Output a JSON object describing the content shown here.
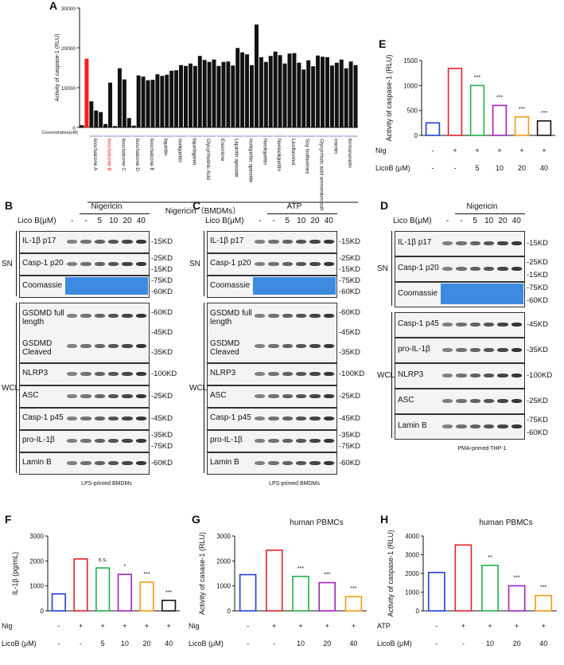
{
  "chart_data": [
    {
      "type": "bar",
      "letter": "A",
      "ylabel": "Activity of caspase-1 (RLU)",
      "xlabel": "Concentration(uM)",
      "footer": "Nigericin（BMDMs）",
      "values": [
        500,
        17200,
        6500,
        4200,
        3800,
        800,
        11200,
        300,
        14800,
        12000,
        2300,
        400,
        13000,
        12700,
        11800,
        11900,
        13300,
        12900,
        13200,
        14200,
        14300,
        15600,
        15400,
        16000,
        15400,
        17900,
        16900,
        16400,
        17000,
        15400,
        16400,
        16500,
        15500,
        19900,
        18800,
        18300,
        15600,
        25800,
        17600,
        16400,
        17900,
        19000,
        18100,
        16000,
        18500,
        18600,
        16200,
        14500,
        16800,
        15300,
        18000,
        17700,
        17600,
        15500,
        16200,
        17000,
        14800,
        16500,
        15600
      ],
      "colors": [
        "#111",
        "#ff1a1a",
        "#111",
        "#111",
        "#111",
        "#111",
        "#111",
        "#111",
        "#111",
        "#111",
        "#111",
        "#111",
        "#111",
        "#111",
        "#111",
        "#111",
        "#111",
        "#111",
        "#111",
        "#111",
        "#111",
        "#111",
        "#111",
        "#111",
        "#111",
        "#111",
        "#111",
        "#111",
        "#111",
        "#111",
        "#111",
        "#111",
        "#111",
        "#111",
        "#111",
        "#111",
        "#111",
        "#111",
        "#111",
        "#111",
        "#111",
        "#111",
        "#111",
        "#111",
        "#111",
        "#111",
        "#111",
        "#111",
        "#111",
        "#111",
        "#111",
        "#111",
        "#111",
        "#111",
        "#111",
        "#111",
        "#111",
        "#111",
        "#111"
      ],
      "group_labels": [
        {
          "text": "licochalcone A",
          "color": "#111"
        },
        {
          "text": "licochalcone B",
          "color": "#e8202a"
        },
        {
          "text": "licochalcone C",
          "color": "#111"
        },
        {
          "text": "licochalcone D",
          "color": "#111"
        },
        {
          "text": "licochalcone E",
          "color": "#111"
        },
        {
          "text": "liquiritin",
          "color": "#111"
        },
        {
          "text": "Isoliquiritin",
          "color": "#111"
        },
        {
          "text": "liquiritigenin",
          "color": "#111"
        },
        {
          "text": "Glycyrrhetinic Acid",
          "color": "#111"
        },
        {
          "text": "Ereoxlone",
          "color": "#111"
        },
        {
          "text": "Liquiritin apioside",
          "color": "#111"
        },
        {
          "text": "Isoliquiritin apioside",
          "color": "#111"
        },
        {
          "text": "Neoliquiritin",
          "color": "#111"
        },
        {
          "text": "Neoisoliquiritin",
          "color": "#111"
        },
        {
          "text": "Licoflavonol",
          "color": "#111"
        },
        {
          "text": "Soy Isoflavones",
          "color": "#111"
        },
        {
          "text": "Glycyrrhizic acid ammonium salt",
          "color": "#111"
        },
        {
          "text": "ononin",
          "color": "#111"
        },
        {
          "text": "formononetin",
          "color": "#111"
        }
      ],
      "ylim": [
        0,
        30000
      ],
      "yticks": [
        0,
        10000,
        20000,
        30000
      ]
    },
    {
      "type": "bar",
      "letter": "E",
      "ylabel": "Activity of caspase-1 (RLU)",
      "values": [
        250,
        1340,
        1000,
        600,
        370,
        290
      ],
      "colors": [
        "#1f3fd6",
        "#e8202a",
        "#22b14c",
        "#a020c0",
        "#f39c12",
        "#111111"
      ],
      "sig": [
        null,
        null,
        "***",
        "***",
        "***",
        "***"
      ],
      "rows": [
        {
          "label": "Nig",
          "values": [
            "-",
            "+",
            "+",
            "+",
            "+",
            "+"
          ]
        },
        {
          "label": "LicoB (μM)",
          "values": [
            "-",
            "-",
            "5",
            "10",
            "20",
            "40"
          ]
        }
      ],
      "ylim": [
        0,
        1500
      ],
      "yticks": [
        0,
        500,
        1000,
        1500
      ]
    },
    {
      "type": "bar",
      "letter": "F",
      "ylabel": "IL-1β (pg/mL)",
      "values": [
        680,
        2080,
        1720,
        1460,
        1150,
        420
      ],
      "colors": [
        "#1f3fd6",
        "#e8202a",
        "#22b14c",
        "#a020c0",
        "#f39c12",
        "#111111"
      ],
      "sig": [
        null,
        null,
        "n.s.",
        "*",
        "***",
        "***"
      ],
      "rows": [
        {
          "label": "Nig",
          "values": [
            "-",
            "+",
            "+",
            "+",
            "+",
            "+"
          ]
        },
        {
          "label": "LicoB (μM)",
          "values": [
            "-",
            "-",
            "5",
            "10",
            "20",
            "40"
          ]
        }
      ],
      "ylim": [
        0,
        3000
      ],
      "yticks": [
        0,
        1000,
        2000,
        3000
      ]
    },
    {
      "type": "bar",
      "letter": "G",
      "title": "human PBMCs",
      "ylabel": "Activity of casase-1 (RLU)",
      "values": [
        1450,
        2430,
        1380,
        1130,
        570
      ],
      "colors": [
        "#1f3fd6",
        "#e8202a",
        "#22b14c",
        "#a020c0",
        "#f39c12"
      ],
      "sig": [
        null,
        null,
        "***",
        "***",
        "***"
      ],
      "rows": [
        {
          "label": "Nig",
          "values": [
            "-",
            "+",
            "+",
            "+",
            "+"
          ]
        },
        {
          "label": "LicoB (μM)",
          "values": [
            "-",
            "-",
            "10",
            "20",
            "40"
          ]
        }
      ],
      "ylim": [
        0,
        3000
      ],
      "yticks": [
        0,
        1000,
        2000,
        3000
      ]
    },
    {
      "type": "bar",
      "letter": "H",
      "title": "human PBMCs",
      "ylabel": "Activity of caspase-1 (RLU)",
      "values": [
        2050,
        3520,
        2430,
        1340,
        820
      ],
      "colors": [
        "#1f3fd6",
        "#e8202a",
        "#22b14c",
        "#a020c0",
        "#f39c12"
      ],
      "sig": [
        null,
        null,
        "**",
        "***",
        "***"
      ],
      "rows": [
        {
          "label": "ATP",
          "values": [
            "-",
            "+",
            "+",
            "+",
            "+"
          ]
        },
        {
          "label": "LicoB (μM)",
          "values": [
            "-",
            "-",
            "10",
            "20",
            "40"
          ]
        }
      ],
      "ylim": [
        0,
        4000
      ],
      "yticks": [
        0,
        1000,
        2000,
        3000,
        4000
      ]
    }
  ],
  "blots": [
    {
      "letter": "B",
      "header": "Nigericin",
      "lane_label": "Lico B(μM)",
      "lanes": [
        "-",
        "-",
        "5",
        "10",
        "20",
        "40"
      ],
      "footer": "LPS-primed BMDMs",
      "sections": [
        {
          "label": "SN",
          "rows": [
            {
              "labels": [
                "IL-1β p17"
              ],
              "markers": [
                "-15KD"
              ]
            },
            {
              "labels": [
                "Casp-1 p20"
              ],
              "markers": [
                "-25KD",
                "-15KD"
              ]
            },
            {
              "labels": [
                "Coomassie"
              ],
              "markers": [
                "-75KD",
                "-60KD"
              ]
            }
          ]
        },
        {
          "label": "WCL",
          "rows": [
            {
              "labels": [
                "GSDMD full length",
                "GSDMD Cleaved"
              ],
              "markers": [
                "-60KD",
                "-45KD",
                "-35KD"
              ]
            },
            {
              "labels": [
                "NLRP3"
              ],
              "markers": [
                "-100KD"
              ]
            },
            {
              "labels": [
                "ASC"
              ],
              "markers": [
                "-25KD"
              ]
            },
            {
              "labels": [
                "Casp-1 p45"
              ],
              "markers": [
                "-45KD"
              ]
            },
            {
              "labels": [
                "pro-IL-1β"
              ],
              "markers": [
                "-35KD",
                "-75KD"
              ]
            },
            {
              "labels": [
                "Lamin B"
              ],
              "markers": [
                "-60KD"
              ]
            }
          ]
        }
      ]
    },
    {
      "letter": "C",
      "header": "ATP",
      "lane_label": "Lico B(μM)",
      "lanes": [
        "-",
        "-",
        "5",
        "10",
        "20",
        "40"
      ],
      "footer": "LPS-primed BMDMs",
      "sections": [
        {
          "label": "SN",
          "rows": [
            {
              "labels": [
                "IL-1β p17"
              ],
              "markers": [
                "-15KD"
              ]
            },
            {
              "labels": [
                "Casp-1 p20"
              ],
              "markers": [
                "-25KD",
                "-15KD"
              ]
            },
            {
              "labels": [
                "Coomassie"
              ],
              "markers": [
                "-75KD",
                "-60KD"
              ]
            }
          ]
        },
        {
          "label": "WCL",
          "rows": [
            {
              "labels": [
                "GSDMD full length",
                "GSDMD Cleaved"
              ],
              "markers": [
                "-60KD",
                "-45KD",
                "-35KD"
              ]
            },
            {
              "labels": [
                "NLRP3"
              ],
              "markers": [
                "-100KD"
              ]
            },
            {
              "labels": [
                "ASC"
              ],
              "markers": [
                "-25KD"
              ]
            },
            {
              "labels": [
                "Casp-1 p45"
              ],
              "markers": [
                "-45KD"
              ]
            },
            {
              "labels": [
                "pro-IL-1β"
              ],
              "markers": [
                "-35KD",
                "-75KD"
              ]
            },
            {
              "labels": [
                "Lamin B"
              ],
              "markers": [
                "-60KD"
              ]
            }
          ]
        }
      ]
    },
    {
      "letter": "D",
      "header": "Nigericin",
      "lane_label": "Lico B(μM)",
      "lanes": [
        "-",
        "-",
        "5",
        "10",
        "20",
        "40"
      ],
      "footer": "PMA-primed THP-1",
      "sections": [
        {
          "label": "SN",
          "rows": [
            {
              "labels": [
                "IL-1β p17"
              ],
              "markers": [
                "-15KD"
              ]
            },
            {
              "labels": [
                "Casp-1 p20"
              ],
              "markers": [
                "-25KD",
                "-15KD"
              ]
            },
            {
              "labels": [
                "Coomassie"
              ],
              "markers": [
                "-75KD",
                "-60KD"
              ]
            }
          ]
        },
        {
          "label": "WCL",
          "rows": [
            {
              "labels": [
                "Casp-1 p45"
              ],
              "markers": [
                "-45KD"
              ]
            },
            {
              "labels": [
                "pro-IL-1β"
              ],
              "markers": [
                "-35KD"
              ]
            },
            {
              "labels": [
                "NLRP3"
              ],
              "markers": [
                "-100KD"
              ]
            },
            {
              "labels": [
                "ASC"
              ],
              "markers": [
                "-25KD"
              ]
            },
            {
              "labels": [
                "Lamin B"
              ],
              "markers": [
                "-75KD",
                "-60KD"
              ]
            }
          ]
        }
      ]
    }
  ]
}
